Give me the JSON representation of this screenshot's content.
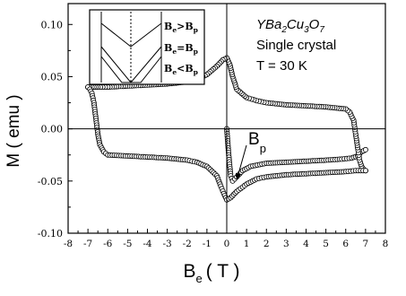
{
  "chart_data": {
    "type": "scatter",
    "title": "",
    "xlabel": {
      "main": "B",
      "sub": "e",
      "unit": "( T )"
    },
    "ylabel": "M ( emu )",
    "xlim": [
      -8,
      8
    ],
    "ylim": [
      -0.1,
      0.12
    ],
    "x_ticks": [
      -8,
      -7,
      -6,
      -5,
      -4,
      -3,
      -2,
      -1,
      0,
      1,
      2,
      3,
      4,
      5,
      6,
      7,
      8
    ],
    "x_tick_labels": [
      "-8",
      "-7",
      "-6",
      "-5",
      "-4",
      "-3",
      "-2",
      "-1",
      "0",
      "1",
      "2",
      "3",
      "4",
      "5",
      "6",
      "7",
      "8"
    ],
    "y_ticks": [
      -0.1,
      -0.05,
      0.0,
      0.05,
      0.1
    ],
    "y_tick_labels": [
      "-0.10",
      "-0.05",
      "0.00",
      "0.05",
      "0.10"
    ],
    "reference_lines": {
      "x": 0,
      "y": 0
    },
    "grid": false,
    "marker": "open-circle",
    "series": [
      {
        "x": [
          0,
          0.1,
          0.2,
          0.3,
          0.5,
          0.8,
          1.2,
          2,
          3,
          4,
          5,
          5.8,
          6.3,
          6.6,
          6.8,
          7
        ],
        "y": [
          0,
          -0.025,
          -0.045,
          -0.05,
          -0.046,
          -0.04,
          -0.036,
          -0.033,
          -0.032,
          -0.031,
          -0.03,
          -0.029,
          -0.028,
          -0.026,
          -0.022,
          -0.02
        ]
      },
      {
        "x": [
          7,
          6.9,
          6.8,
          6.7,
          6.6,
          6.5,
          6.4,
          6.2,
          6,
          5,
          4,
          3,
          2,
          1.5,
          1,
          0.5,
          0.3,
          0.15,
          0,
          -0.2,
          -0.5,
          -1,
          -1.5,
          -2,
          -3,
          -4,
          -5,
          -6,
          -6.5,
          -6.8,
          -7
        ],
        "y": [
          -0.04,
          -0.039,
          -0.036,
          -0.03,
          -0.018,
          -0.005,
          0.008,
          0.016,
          0.019,
          0.021,
          0.022,
          0.023,
          0.025,
          0.027,
          0.03,
          0.038,
          0.05,
          0.062,
          0.068,
          0.066,
          0.06,
          0.052,
          0.047,
          0.045,
          0.043,
          0.042,
          0.041,
          0.04,
          0.04,
          0.04,
          0.04
        ]
      },
      {
        "x": [
          -7,
          -6.9,
          -6.8,
          -6.7,
          -6.6,
          -6.5,
          -6.4,
          -6.2,
          -6,
          -5,
          -4,
          -3,
          -2,
          -1.5,
          -1,
          -0.5,
          -0.3,
          -0.15,
          0,
          0.2,
          0.5,
          1,
          1.5,
          2,
          3,
          4,
          5,
          6,
          6.5,
          7
        ],
        "y": [
          0.04,
          0.038,
          0.034,
          0.025,
          0.01,
          -0.005,
          -0.015,
          -0.022,
          -0.025,
          -0.026,
          -0.027,
          -0.028,
          -0.03,
          -0.032,
          -0.036,
          -0.045,
          -0.055,
          -0.062,
          -0.068,
          -0.066,
          -0.06,
          -0.053,
          -0.048,
          -0.046,
          -0.044,
          -0.043,
          -0.042,
          -0.041,
          -0.04,
          -0.04
        ]
      }
    ],
    "annotations": {
      "formula_parts": [
        {
          "text": "YBa",
          "sub": "2"
        },
        {
          "text": "Cu",
          "sub": "3"
        },
        {
          "text": "O",
          "sub": "7"
        }
      ],
      "lines": [
        "Single crystal",
        "T = 30 K"
      ],
      "bp_label": {
        "main": "B",
        "sub": "p"
      }
    },
    "inset": {
      "legend": [
        {
          "main": "B",
          "sub1": "e",
          "op": ">",
          "main2": "B",
          "sub2": "p"
        },
        {
          "main": "B",
          "sub1": "e",
          "op": "=",
          "main2": "B",
          "sub2": "p"
        },
        {
          "main": "B",
          "sub1": "e",
          "op": "<",
          "main2": "B",
          "sub2": "p"
        }
      ]
    }
  }
}
